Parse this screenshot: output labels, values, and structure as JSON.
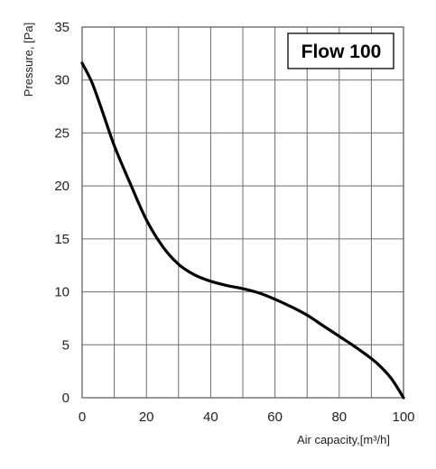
{
  "chart_data": {
    "type": "line",
    "title": "",
    "xlabel": "Air capacity,[m³/h]",
    "ylabel": "Pressure, [Pa]",
    "xlim": [
      0,
      100
    ],
    "ylim": [
      0,
      35
    ],
    "x_ticks": [
      0,
      10,
      20,
      30,
      40,
      50,
      60,
      70,
      80,
      90,
      100
    ],
    "y_ticks": [
      0,
      5,
      10,
      15,
      20,
      25,
      30,
      35
    ],
    "x_tick_labels": [
      "0",
      "20",
      "40",
      "60",
      "80",
      "100"
    ],
    "y_tick_labels": [
      "0",
      "5",
      "10",
      "15",
      "20",
      "25",
      "30",
      "35"
    ],
    "grid": true,
    "legend_position": "top-right",
    "series": [
      {
        "name": "Flow 100",
        "color": "#000000",
        "x": [
          0,
          3,
          6,
          10,
          15,
          20,
          25,
          30,
          35,
          40,
          45,
          50,
          55,
          60,
          65,
          70,
          75,
          80,
          85,
          90,
          93,
          96,
          98,
          100
        ],
        "y": [
          31.6,
          29.8,
          27.3,
          23.8,
          20.2,
          16.8,
          14.3,
          12.6,
          11.6,
          11.0,
          10.6,
          10.3,
          9.9,
          9.3,
          8.6,
          7.8,
          6.8,
          5.8,
          4.8,
          3.7,
          2.9,
          1.9,
          1.0,
          0
        ]
      }
    ]
  }
}
